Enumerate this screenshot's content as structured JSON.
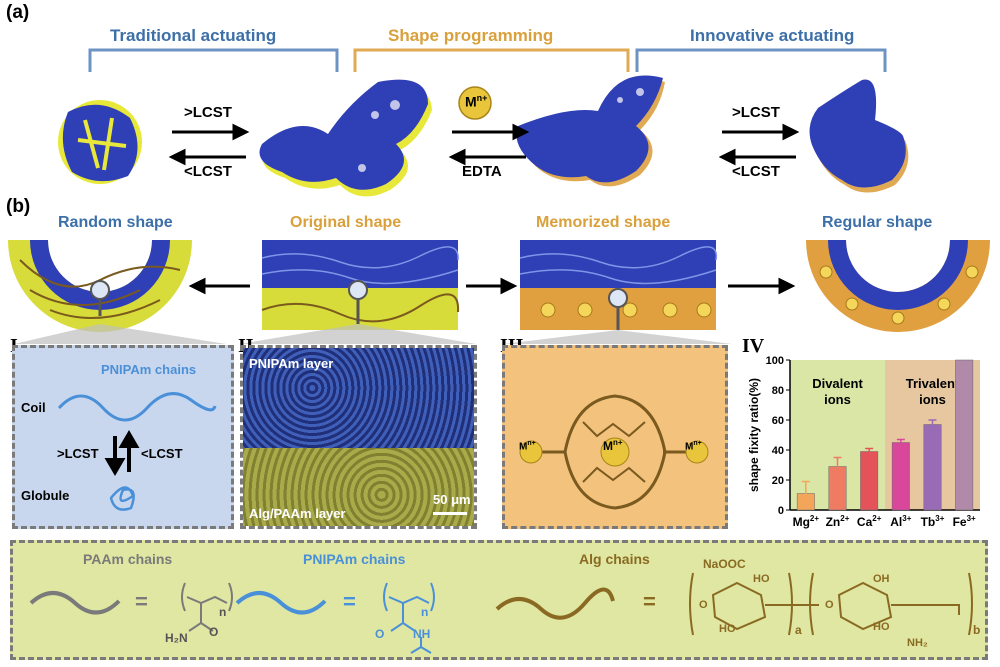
{
  "panel_a": {
    "letter": "(a)",
    "headers": {
      "traditional": "Traditional actuating",
      "programming": "Shape programming",
      "innovative": "Innovative actuating"
    },
    "conditions": {
      "above_lcst_1": ">LCST",
      "below_lcst_1": "<LCST",
      "metal_ion": "M",
      "metal_ion_charge": "n+",
      "edta": "EDTA",
      "above_lcst_2": ">LCST",
      "below_lcst_2": "<LCST"
    }
  },
  "panel_b": {
    "letter": "(b)",
    "shapes": {
      "random": "Random shape",
      "original": "Original shape",
      "memorized": "Memorized shape",
      "regular": "Regular shape"
    },
    "sub_i": {
      "numeral": "I",
      "title": "PNIPAm chains",
      "coil": "Coil",
      "globule": "Globule",
      "above": ">LCST",
      "below": "<LCST"
    },
    "sub_ii": {
      "numeral": "II",
      "top_layer": "PNIPAm layer",
      "bottom_layer": "Alg/PAAm layer",
      "scale": "50 μm"
    },
    "sub_iii": {
      "numeral": "III",
      "metal": "M",
      "charge": "n+"
    },
    "sub_iv": {
      "numeral": "IV"
    }
  },
  "chart_data": {
    "type": "bar",
    "ylabel": "shape fixity ratio(%)",
    "ylim": [
      0,
      100
    ],
    "yticks": [
      "0",
      "20",
      "40",
      "60",
      "80",
      "100"
    ],
    "categories": [
      "Mg",
      "Zn",
      "Ca",
      "Al",
      "Tb",
      "Fe"
    ],
    "category_charges": [
      "2+",
      "2+",
      "2+",
      "3+",
      "3+",
      "3+"
    ],
    "values": [
      11,
      29,
      39,
      45,
      57,
      100
    ],
    "errors": [
      8,
      6,
      2,
      2,
      3,
      0
    ],
    "bar_colors": [
      "#f3a55a",
      "#ee7b62",
      "#e4525a",
      "#d9479b",
      "#9a6bb5",
      "#b08aa8"
    ],
    "groups": [
      {
        "label_line1": "Divalent",
        "label_line2": "ions",
        "color": "#d9e6a6"
      },
      {
        "label_line1": "Trivalent",
        "label_line2": "ions",
        "color": "#e6c7a0"
      }
    ]
  },
  "legend_row": {
    "paam": "PAAm chains",
    "pnipam": "PNIPAm chains",
    "alg": "Alg chains",
    "equals": "=",
    "paam_n": "n",
    "paam_h2n": "H₂N",
    "paam_o": "O",
    "pnipam_n": "n",
    "pnipam_o": "O",
    "pnipam_nh": "NH",
    "alg_naooc": "NaOOC",
    "alg_ho1": "HO",
    "alg_ho2": "HO",
    "alg_oh": "OH",
    "alg_ho3": "HO",
    "alg_nh2": "NH₂",
    "alg_o1": "O",
    "alg_o2": "O",
    "alg_a": "a",
    "alg_b": "b"
  },
  "colors": {
    "blue": "#2f3fb5",
    "yellow": "#e8e83a",
    "olive": "#7a5a1e",
    "pale_blue_bg": "#c9d7ee",
    "orange_bg": "#f0b868",
    "legend_bg": "#dfe7a2"
  }
}
